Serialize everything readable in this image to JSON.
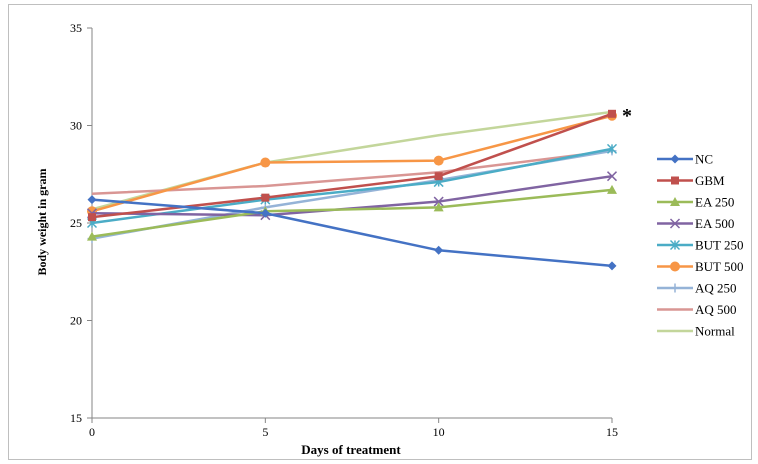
{
  "chart_data": {
    "type": "line",
    "xlabel": "Days of treatment",
    "ylabel": "Body weight in gram",
    "x": [
      0,
      5,
      10,
      15
    ],
    "xlim": [
      0,
      15
    ],
    "ylim": [
      15,
      35
    ],
    "yticks": [
      15,
      20,
      25,
      30,
      35
    ],
    "xticks": [
      0,
      5,
      10,
      15
    ],
    "grid": false,
    "legend_position": "right",
    "annotation": {
      "text": "*",
      "x": 15,
      "y": 30.6
    },
    "series": [
      {
        "name": "NC",
        "color": "#4472c4",
        "marker": "diamond",
        "values": [
          26.2,
          25.5,
          23.6,
          22.8
        ]
      },
      {
        "name": "GBM",
        "color": "#c0504d",
        "marker": "square",
        "values": [
          25.3,
          26.3,
          27.4,
          30.6
        ]
      },
      {
        "name": "EA 250",
        "color": "#9bbb59",
        "marker": "triangle",
        "values": [
          24.3,
          25.6,
          25.8,
          26.7
        ]
      },
      {
        "name": "EA 500",
        "color": "#8064a2",
        "marker": "x",
        "values": [
          25.5,
          25.4,
          26.1,
          27.4
        ]
      },
      {
        "name": "BUT 250",
        "color": "#4bacc6",
        "marker": "star",
        "values": [
          25.0,
          26.2,
          27.1,
          28.8
        ]
      },
      {
        "name": "BUT 500",
        "color": "#f79646",
        "marker": "circle",
        "values": [
          25.6,
          28.1,
          28.2,
          30.5
        ]
      },
      {
        "name": "AQ 250",
        "color": "#95b3d7",
        "marker": "plus",
        "values": [
          24.2,
          25.8,
          27.2,
          28.7
        ]
      },
      {
        "name": "AQ 500",
        "color": "#d99694",
        "marker": "none",
        "values": [
          26.5,
          26.9,
          27.6,
          28.7
        ]
      },
      {
        "name": "Normal",
        "color": "#c3d69b",
        "marker": "none",
        "values": [
          25.7,
          28.1,
          29.5,
          30.7
        ]
      }
    ]
  }
}
